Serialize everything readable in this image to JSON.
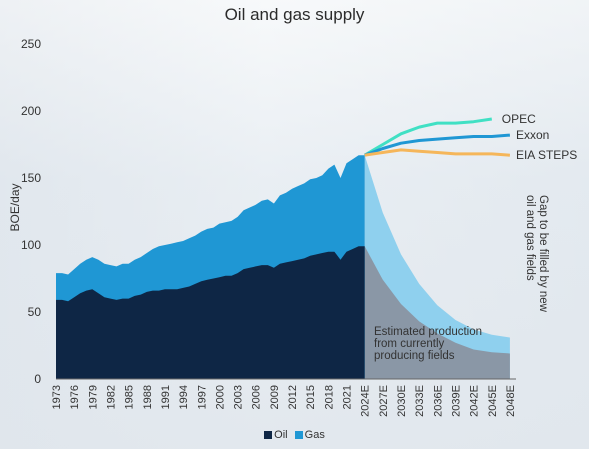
{
  "chart_data": {
    "type": "area",
    "title": "Oil and gas supply",
    "ylabel": "BOE/day",
    "xlabel": "",
    "ylim": [
      0,
      250
    ],
    "yticks": [
      0,
      50,
      100,
      150,
      200,
      250
    ],
    "grid": false,
    "legend_position": "bottom",
    "xtick_labels": [
      "1973",
      "1976",
      "1979",
      "1982",
      "1985",
      "1988",
      "1991",
      "1994",
      "1997",
      "2000",
      "2003",
      "2006",
      "2009",
      "2012",
      "2015",
      "2018",
      "2021",
      "2024E",
      "2027E",
      "2030E",
      "2033E",
      "2036E",
      "2039E",
      "2042E",
      "2045E",
      "2048E"
    ],
    "historical": {
      "years": [
        1973,
        1974,
        1975,
        1976,
        1977,
        1978,
        1979,
        1980,
        1981,
        1982,
        1983,
        1984,
        1985,
        1986,
        1987,
        1988,
        1989,
        1990,
        1991,
        1992,
        1993,
        1994,
        1995,
        1996,
        1997,
        1998,
        1999,
        2000,
        2001,
        2002,
        2003,
        2004,
        2005,
        2006,
        2007,
        2008,
        2009,
        2010,
        2011,
        2012,
        2013,
        2014,
        2015,
        2016,
        2017,
        2018,
        2019,
        2020,
        2021,
        2022,
        2023,
        2024
      ],
      "oil": [
        59,
        59,
        58,
        61,
        64,
        66,
        67,
        64,
        61,
        60,
        59,
        60,
        60,
        62,
        63,
        65,
        66,
        66,
        67,
        67,
        67,
        68,
        69,
        71,
        73,
        74,
        75,
        76,
        77,
        77,
        79,
        82,
        83,
        84,
        85,
        85,
        83,
        86,
        87,
        88,
        89,
        90,
        92,
        93,
        94,
        95,
        95,
        89,
        95,
        97,
        99,
        99
      ],
      "total": [
        79,
        79,
        78,
        82,
        86,
        89,
        91,
        89,
        86,
        85,
        84,
        86,
        86,
        89,
        91,
        94,
        97,
        99,
        100,
        101,
        102,
        103,
        105,
        107,
        110,
        112,
        113,
        116,
        117,
        118,
        121,
        126,
        128,
        130,
        133,
        134,
        131,
        137,
        139,
        142,
        144,
        146,
        149,
        150,
        152,
        157,
        160,
        150,
        161,
        164,
        167,
        167
      ]
    },
    "forecast": {
      "years": [
        2024,
        2027,
        2030,
        2033,
        2036,
        2039,
        2042,
        2045,
        2048
      ],
      "estimated_production_total": [
        167,
        124,
        93,
        71,
        55,
        44,
        37,
        33,
        31
      ],
      "estimated_production_oil": [
        99,
        74,
        56,
        43,
        34,
        27,
        22,
        20,
        19
      ]
    },
    "series": [
      {
        "name": "Oil",
        "type": "area",
        "color": "#0e2645"
      },
      {
        "name": "Gas",
        "type": "area",
        "color": "#1f97d4"
      },
      {
        "name": "OPEC",
        "type": "line",
        "color": "#40e0c4",
        "x": [
          2024,
          2027,
          2030,
          2033,
          2036,
          2039,
          2042,
          2045
        ],
        "values": [
          167,
          175,
          183,
          188,
          191,
          191,
          192,
          194
        ]
      },
      {
        "name": "Exxon",
        "type": "line",
        "color": "#1f97d4",
        "x": [
          2024,
          2027,
          2030,
          2033,
          2036,
          2039,
          2042,
          2045,
          2048
        ],
        "values": [
          167,
          172,
          176,
          178,
          179,
          180,
          181,
          181,
          182
        ]
      },
      {
        "name": "EIA STEPS",
        "type": "line",
        "color": "#f5b65a",
        "x": [
          2024,
          2027,
          2030,
          2033,
          2036,
          2039,
          2042,
          2045,
          2048
        ],
        "values": [
          167,
          169,
          171,
          170,
          169,
          168,
          168,
          168,
          167
        ]
      }
    ],
    "annotations": [
      {
        "text": [
          "Estimated production",
          "from currently",
          "producing fields"
        ]
      },
      {
        "text": [
          "Gap to be filled by new",
          "oil and gas fields"
        ]
      }
    ],
    "legend": [
      "Oil",
      "Gas"
    ]
  }
}
